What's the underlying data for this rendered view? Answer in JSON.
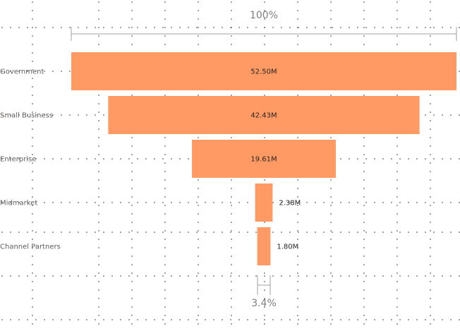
{
  "chart_data": {
    "type": "funnel",
    "categories": [
      "Government",
      "Small Business",
      "Enterprise",
      "Midmarket",
      "Channel Partners"
    ],
    "values": [
      52.5,
      42.43,
      19.61,
      2.38,
      1.8
    ],
    "value_labels": [
      "52.50M",
      "42.43M",
      "19.61M",
      "2.38M",
      "1.80M"
    ],
    "unit": "M",
    "top_percent_label": "100%",
    "bottom_percent_label": "3.4%",
    "bar_color": "#FF9A64",
    "grid": "dotted"
  }
}
